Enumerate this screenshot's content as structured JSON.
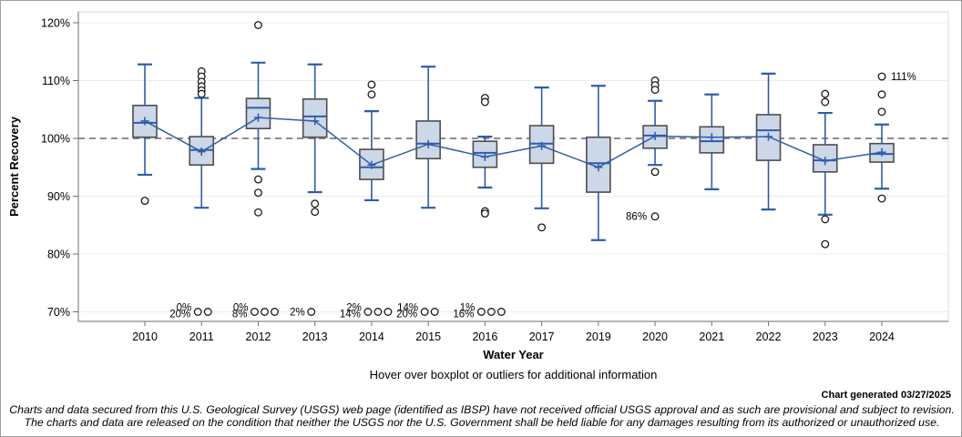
{
  "footer": {
    "hover_hint": "Hover over boxplot or outliers for additional information",
    "generated": "Chart generated 03/27/2025",
    "disclaimer1": "Charts and data secured from this U.S. Geological Survey (USGS) web page (identified as IBSP) have not received official USGS approval and as such are provisional and subject to revision.",
    "disclaimer2": "The charts and data are released on the condition that neither the USGS nor the U.S. Government shall be held liable for any damages resulting from its authorized or unauthorized use."
  },
  "chart_data": {
    "type": "boxplot",
    "xlabel": "Water Year",
    "ylabel": "Percent Recovery",
    "ylim": [
      70,
      120
    ],
    "yticks": [
      70,
      80,
      90,
      100,
      110,
      120
    ],
    "ytick_labels": [
      "70%",
      "80%",
      "90%",
      "100%",
      "110%",
      "120%"
    ],
    "reference_line": 100,
    "grid": true,
    "clip_value": 70,
    "categories": [
      "2010",
      "2011",
      "2012",
      "2013",
      "2014",
      "2015",
      "2016",
      "2017",
      "2019",
      "2020",
      "2021",
      "2022",
      "2023",
      "2024"
    ],
    "boxes": [
      {
        "year": "2010",
        "low": 93.7,
        "q1": 100.2,
        "median": 102.7,
        "q3": 105.7,
        "high": 112.8,
        "mean": 103.0,
        "outliers_high": [],
        "outliers_low": [
          89.2
        ],
        "label_outliers": [],
        "clipped_labels": [],
        "clipped_circles": 0
      },
      {
        "year": "2011",
        "low": 88.0,
        "q1": 95.4,
        "median": 98.0,
        "q3": 100.3,
        "high": 107.0,
        "mean": 97.7,
        "outliers_high": [
          111.6,
          110.7,
          109.8,
          109.0,
          108.3,
          107.7
        ],
        "outliers_low": [],
        "label_outliers": [],
        "clipped_labels": [
          "0%",
          "20%"
        ],
        "clipped_circles": 2
      },
      {
        "year": "2012",
        "low": 94.7,
        "q1": 101.7,
        "median": 105.3,
        "q3": 106.9,
        "high": 113.1,
        "mean": 103.6,
        "outliers_high": [
          119.6
        ],
        "outliers_low": [
          92.9,
          90.6,
          87.2
        ],
        "label_outliers": [],
        "clipped_labels": [
          "0%",
          "8%"
        ],
        "clipped_circles": 3
      },
      {
        "year": "2013",
        "low": 90.7,
        "q1": 100.2,
        "median": 103.8,
        "q3": 106.8,
        "high": 112.8,
        "mean": 103.0,
        "outliers_high": [],
        "outliers_low": [
          88.7,
          87.3
        ],
        "label_outliers": [],
        "clipped_labels": [
          "2%"
        ],
        "clipped_circles": 1
      },
      {
        "year": "2014",
        "low": 89.3,
        "q1": 92.9,
        "median": 95.0,
        "q3": 98.1,
        "high": 104.7,
        "mean": 95.4,
        "outliers_high": [
          109.3,
          107.6
        ],
        "outliers_low": [],
        "label_outliers": [],
        "clipped_labels": [
          "2%",
          "14%"
        ],
        "clipped_circles": 3
      },
      {
        "year": "2015",
        "low": 88.0,
        "q1": 96.5,
        "median": 99.1,
        "q3": 103.0,
        "high": 112.4,
        "mean": 99.0,
        "outliers_high": [],
        "outliers_low": [],
        "label_outliers": [],
        "clipped_labels": [
          "14%",
          "20%"
        ],
        "clipped_circles": 2
      },
      {
        "year": "2016",
        "low": 91.5,
        "q1": 95.0,
        "median": 97.5,
        "q3": 99.5,
        "high": 100.3,
        "mean": 96.8,
        "outliers_high": [
          107.0,
          106.3
        ],
        "outliers_low": [
          87.4,
          87.0
        ],
        "label_outliers": [],
        "clipped_labels": [
          "1%",
          "16%"
        ],
        "clipped_circles": 3
      },
      {
        "year": "2017",
        "low": 87.9,
        "q1": 95.7,
        "median": 99.1,
        "q3": 102.2,
        "high": 108.8,
        "mean": 98.7,
        "outliers_high": [],
        "outliers_low": [
          84.6
        ],
        "label_outliers": [],
        "clipped_labels": [],
        "clipped_circles": 0
      },
      {
        "year": "2019",
        "low": 82.4,
        "q1": 90.7,
        "median": 95.7,
        "q3": 100.2,
        "high": 109.1,
        "mean": 95.0,
        "outliers_high": [],
        "outliers_low": [],
        "label_outliers": [],
        "clipped_labels": [],
        "clipped_circles": 0
      },
      {
        "year": "2020",
        "low": 95.4,
        "q1": 98.3,
        "median": 100.5,
        "q3": 102.2,
        "high": 106.5,
        "mean": 100.4,
        "outliers_high": [
          110.0,
          109.2,
          108.4
        ],
        "outliers_low": [
          94.2
        ],
        "label_outliers": [
          {
            "value": 86.5,
            "text": "86%",
            "side": "left"
          }
        ],
        "clipped_labels": [],
        "clipped_circles": 0
      },
      {
        "year": "2021",
        "low": 91.2,
        "q1": 97.5,
        "median": 99.5,
        "q3": 102.0,
        "high": 107.6,
        "mean": 100.2,
        "outliers_high": [],
        "outliers_low": [],
        "label_outliers": [],
        "clipped_labels": [],
        "clipped_circles": 0
      },
      {
        "year": "2022",
        "low": 87.7,
        "q1": 96.2,
        "median": 101.4,
        "q3": 104.1,
        "high": 111.2,
        "mean": 100.3,
        "outliers_high": [],
        "outliers_low": [],
        "label_outliers": [],
        "clipped_labels": [],
        "clipped_circles": 0
      },
      {
        "year": "2023",
        "low": 86.8,
        "q1": 94.2,
        "median": 96.2,
        "q3": 98.9,
        "high": 104.4,
        "mean": 96.1,
        "outliers_high": [
          107.7,
          106.3
        ],
        "outliers_low": [
          86.0,
          81.7
        ],
        "label_outliers": [],
        "clipped_labels": [],
        "clipped_circles": 0
      },
      {
        "year": "2024",
        "low": 91.3,
        "q1": 95.9,
        "median": 97.3,
        "q3": 99.1,
        "high": 102.4,
        "mean": 97.6,
        "outliers_high": [
          107.6,
          104.6
        ],
        "outliers_low": [
          89.6
        ],
        "label_outliers": [
          {
            "value": 110.7,
            "text": "111%",
            "side": "right"
          }
        ],
        "clipped_labels": [],
        "clipped_circles": 0
      }
    ],
    "colors": {
      "box_fill": "#ccd7e8",
      "box_border": "#4d4d4d",
      "whisker": "#2f5da8",
      "median": "#2f5da8",
      "mean_line": "#2f5da8",
      "reference": "#8c8c8c",
      "gridline": "#ececec",
      "axis": "#6f6f6f",
      "frame": "#d8d8d8",
      "outlier_stroke": "#1a1a1a",
      "outlier_fill": "#ffffff"
    },
    "legend_position": "none"
  }
}
